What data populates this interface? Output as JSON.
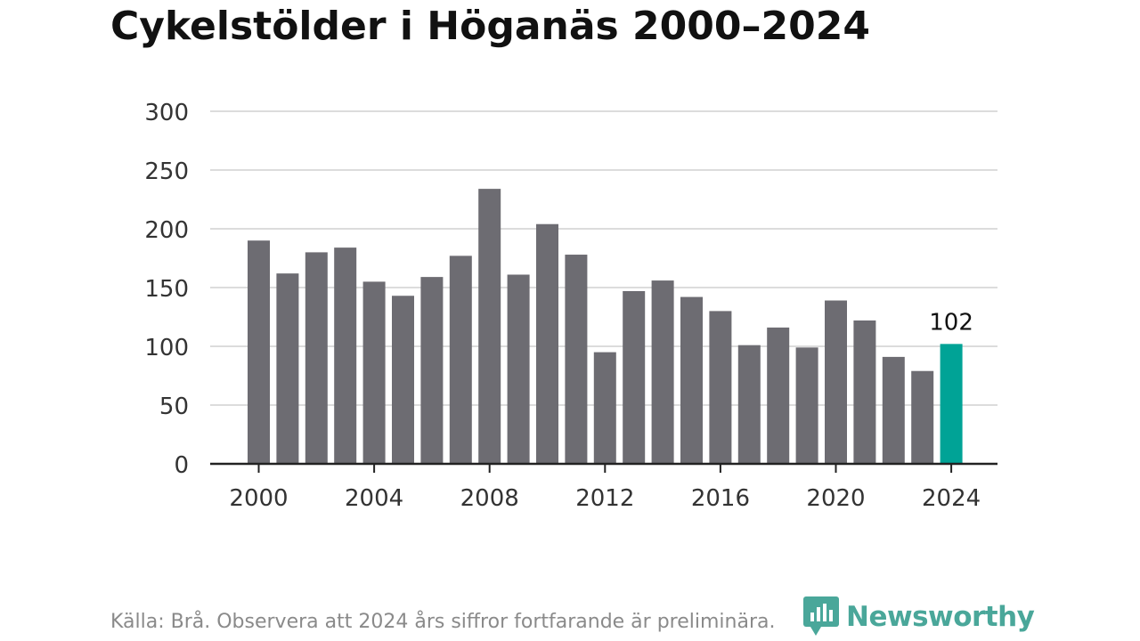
{
  "title": "Cykelstölder i Höganäs 2000–2024",
  "source": "Källa: Brå. Observera att 2024 års siffror fortfarande är preliminära.",
  "brand": "Newsworthy",
  "chart_data": {
    "type": "bar",
    "title": "Cykelstölder i Höganäs 2000–2024",
    "categories": [
      2000,
      2001,
      2002,
      2003,
      2004,
      2005,
      2006,
      2007,
      2008,
      2009,
      2010,
      2011,
      2012,
      2013,
      2014,
      2015,
      2016,
      2017,
      2018,
      2019,
      2020,
      2021,
      2022,
      2023,
      2024
    ],
    "values": [
      190,
      162,
      180,
      184,
      155,
      143,
      159,
      177,
      234,
      161,
      204,
      178,
      95,
      147,
      156,
      142,
      130,
      101,
      116,
      99,
      139,
      122,
      91,
      79,
      102
    ],
    "xticks": [
      2000,
      2004,
      2008,
      2012,
      2016,
      2020,
      2024
    ],
    "yticks": [
      0,
      50,
      100,
      150,
      200,
      250,
      300
    ],
    "ylim": [
      0,
      300
    ],
    "grid": true,
    "bar_color": "#6d6c72",
    "highlight_color": "#00a396",
    "highlight_category": 2024,
    "annotation": {
      "category": 2024,
      "text": "102"
    }
  }
}
